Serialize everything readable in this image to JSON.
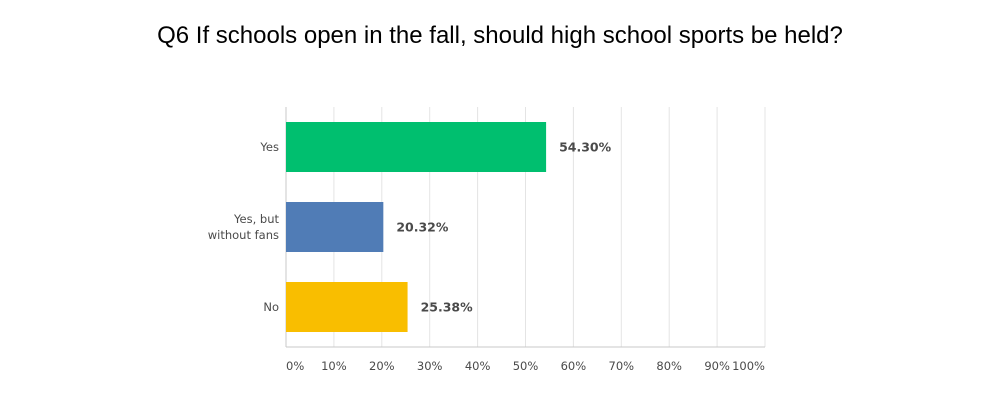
{
  "chart_data": {
    "type": "bar",
    "orientation": "horizontal",
    "title": "Q6 If schools open in the fall, should high school sports be held?",
    "categories": [
      [
        "Yes"
      ],
      [
        "Yes, but",
        "without fans"
      ],
      [
        "No"
      ]
    ],
    "values": [
      54.3,
      20.32,
      25.38
    ],
    "data_labels": [
      "54.30%",
      "20.32%",
      "25.38%"
    ],
    "colors": [
      "#00bf6f",
      "#507cb6",
      "#f9be00"
    ],
    "xlim": [
      0,
      100
    ],
    "xticks": [
      "0%",
      "10%",
      "20%",
      "30%",
      "40%",
      "50%",
      "60%",
      "70%",
      "80%",
      "90%",
      "100%"
    ],
    "grid": true,
    "xlabel": "",
    "ylabel": ""
  }
}
